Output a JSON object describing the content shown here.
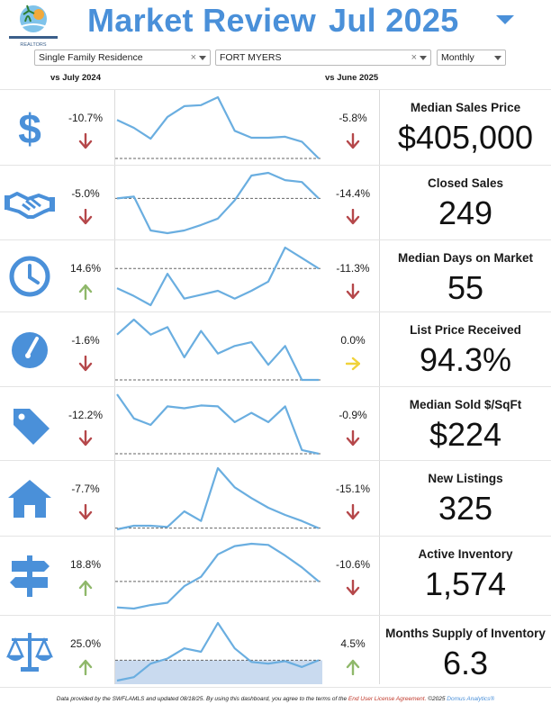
{
  "header": {
    "title": "Market Review",
    "period": "Jul 2025",
    "logo_text": "REALTORS"
  },
  "filters": {
    "property_type": "Single Family Residence",
    "area": "FORT MYERS",
    "interval": "Monthly",
    "clear_symbol": "×"
  },
  "columns": {
    "vs_year": "vs July 2024",
    "vs_month": "vs June 2025"
  },
  "colors": {
    "accent": "#4a90d9",
    "spark_line": "#6aaee0",
    "down": "#b5474a",
    "up": "#8fb86a",
    "flat": "#f0d23a"
  },
  "metrics": [
    {
      "id": "median-sales-price",
      "label": "Median Sales Price",
      "value": "$405,000",
      "icon": "dollar-icon",
      "yoy": "-10.7%",
      "yoy_dir": "down",
      "mom": "-5.8%",
      "mom_dir": "down",
      "spark": [
        72,
        64,
        53,
        75,
        86,
        87,
        95,
        61,
        54,
        54,
        55,
        50,
        33
      ]
    },
    {
      "id": "closed-sales",
      "label": "Closed Sales",
      "value": "249",
      "icon": "handshake-icon",
      "yoy": "-5.0%",
      "yoy_dir": "down",
      "mom": "-14.4%",
      "mom_dir": "down",
      "spark": [
        62,
        64,
        27,
        24,
        27,
        33,
        40,
        60,
        87,
        90,
        82,
        80,
        62
      ]
    },
    {
      "id": "median-days-on-market",
      "label": "Median Days on Market",
      "value": "55",
      "icon": "clock-icon",
      "yoy": "14.6%",
      "yoy_dir": "up",
      "mom": "-11.3%",
      "mom_dir": "down",
      "spark": [
        57,
        51,
        44,
        68,
        49,
        52,
        55,
        49,
        55,
        62,
        88,
        80,
        72
      ]
    },
    {
      "id": "list-price-received",
      "label": "List Price Received",
      "value": "94.3%",
      "icon": "gauge-icon",
      "yoy": "-1.6%",
      "yoy_dir": "down",
      "mom": "0.0%",
      "mom_dir": "flat",
      "spark": [
        94.9,
        95.1,
        94.9,
        95.0,
        94.6,
        94.95,
        94.65,
        94.75,
        94.8,
        94.5,
        94.75,
        94.3,
        94.3
      ]
    },
    {
      "id": "median-sold-per-sqft",
      "label": "Median Sold $/SqFt",
      "value": "$224",
      "icon": "tag-icon",
      "yoy": "-12.2%",
      "yoy_dir": "down",
      "mom": "-0.9%",
      "mom_dir": "down",
      "spark": [
        288,
        262,
        255,
        275,
        273,
        276,
        275,
        258,
        268,
        258,
        275,
        228,
        224
      ]
    },
    {
      "id": "new-listings",
      "label": "New Listings",
      "value": "325",
      "icon": "house-icon",
      "yoy": "-7.7%",
      "yoy_dir": "down",
      "mom": "-15.1%",
      "mom_dir": "down",
      "spark": [
        31,
        34,
        34,
        33,
        46,
        38,
        82,
        66,
        57,
        49,
        43,
        38,
        32
      ]
    },
    {
      "id": "active-inventory",
      "label": "Active Inventory",
      "value": "1,574",
      "icon": "signpost-icon",
      "yoy": "18.8%",
      "yoy_dir": "up",
      "mom": "-10.6%",
      "mom_dir": "down",
      "spark": [
        27,
        26,
        29,
        31,
        45,
        53,
        72,
        79,
        81,
        80,
        71,
        61,
        49
      ]
    },
    {
      "id": "months-supply-of-inventory",
      "label": "Months Supply of Inventory",
      "value": "6.3",
      "icon": "scales-icon",
      "yoy": "25.0%",
      "yoy_dir": "up",
      "mom": "4.5%",
      "mom_dir": "up",
      "spark": [
        3.8,
        4.0,
        4.8,
        5.1,
        5.7,
        5.5,
        7.2,
        5.7,
        4.9,
        4.8,
        4.95,
        4.6,
        5.0
      ]
    }
  ],
  "footer": {
    "text": "Data provided by the SWFLAMLS and updated 08/18/25.  By using this dashboard, you agree to the terms of the",
    "link": "End User License Agreement.",
    "copyright": "©2025",
    "brand": "Domus Analytics®"
  }
}
